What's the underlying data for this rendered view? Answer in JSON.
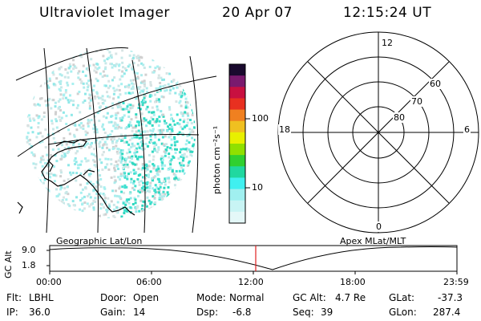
{
  "header": {
    "instrument": "Ultraviolet Imager",
    "date": "20 Apr 07",
    "time": "12:15:24 UT"
  },
  "colorbar": {
    "unit_label": "photon cm⁻²s⁻¹",
    "ticks": [
      "100",
      "10"
    ],
    "colors": [
      "#1a0a2e",
      "#7a1a6e",
      "#c81040",
      "#e83020",
      "#f08020",
      "#f0c020",
      "#e8f000",
      "#90e000",
      "#30d030",
      "#20d8a0",
      "#40f0f0",
      "#a0f0f0",
      "#c8f4f4",
      "#e4f8f8"
    ]
  },
  "polar": {
    "mlt_labels": {
      "top": "12",
      "left": "18",
      "right": "6",
      "bottom": "0"
    },
    "lat_labels": [
      "60",
      "70",
      "80"
    ]
  },
  "panels": {
    "left_caption": "Geographic Lat/Lon",
    "right_caption": "Apex MLat/MLT"
  },
  "altitude_plot": {
    "ylabel": "GC Alt",
    "yticks": [
      "9.0",
      "1.8"
    ],
    "xticks": [
      "00:00",
      "06:00",
      "12:00",
      "18:00",
      "23:59"
    ],
    "current_time_marker": "12:15",
    "marker_color": "#e02020"
  },
  "status": {
    "flt_label": "Flt:",
    "flt_value": "LBHL",
    "door_label": "Door:",
    "door_value": "Open",
    "mode_label": "Mode:",
    "mode_value": "Normal",
    "gcalt_label": "GC Alt:",
    "gcalt_value": "4.7 Re",
    "glat_label": "GLat:",
    "glat_value": "-37.3",
    "ip_label": "IP:",
    "ip_value": "36.0",
    "gain_label": "Gain:",
    "gain_value": "14",
    "dsp_label": "Dsp:",
    "dsp_value": "-6.8",
    "seq_label": "Seq:",
    "seq_value": "39",
    "glon_label": "GLon:",
    "glon_value": "287.4"
  }
}
